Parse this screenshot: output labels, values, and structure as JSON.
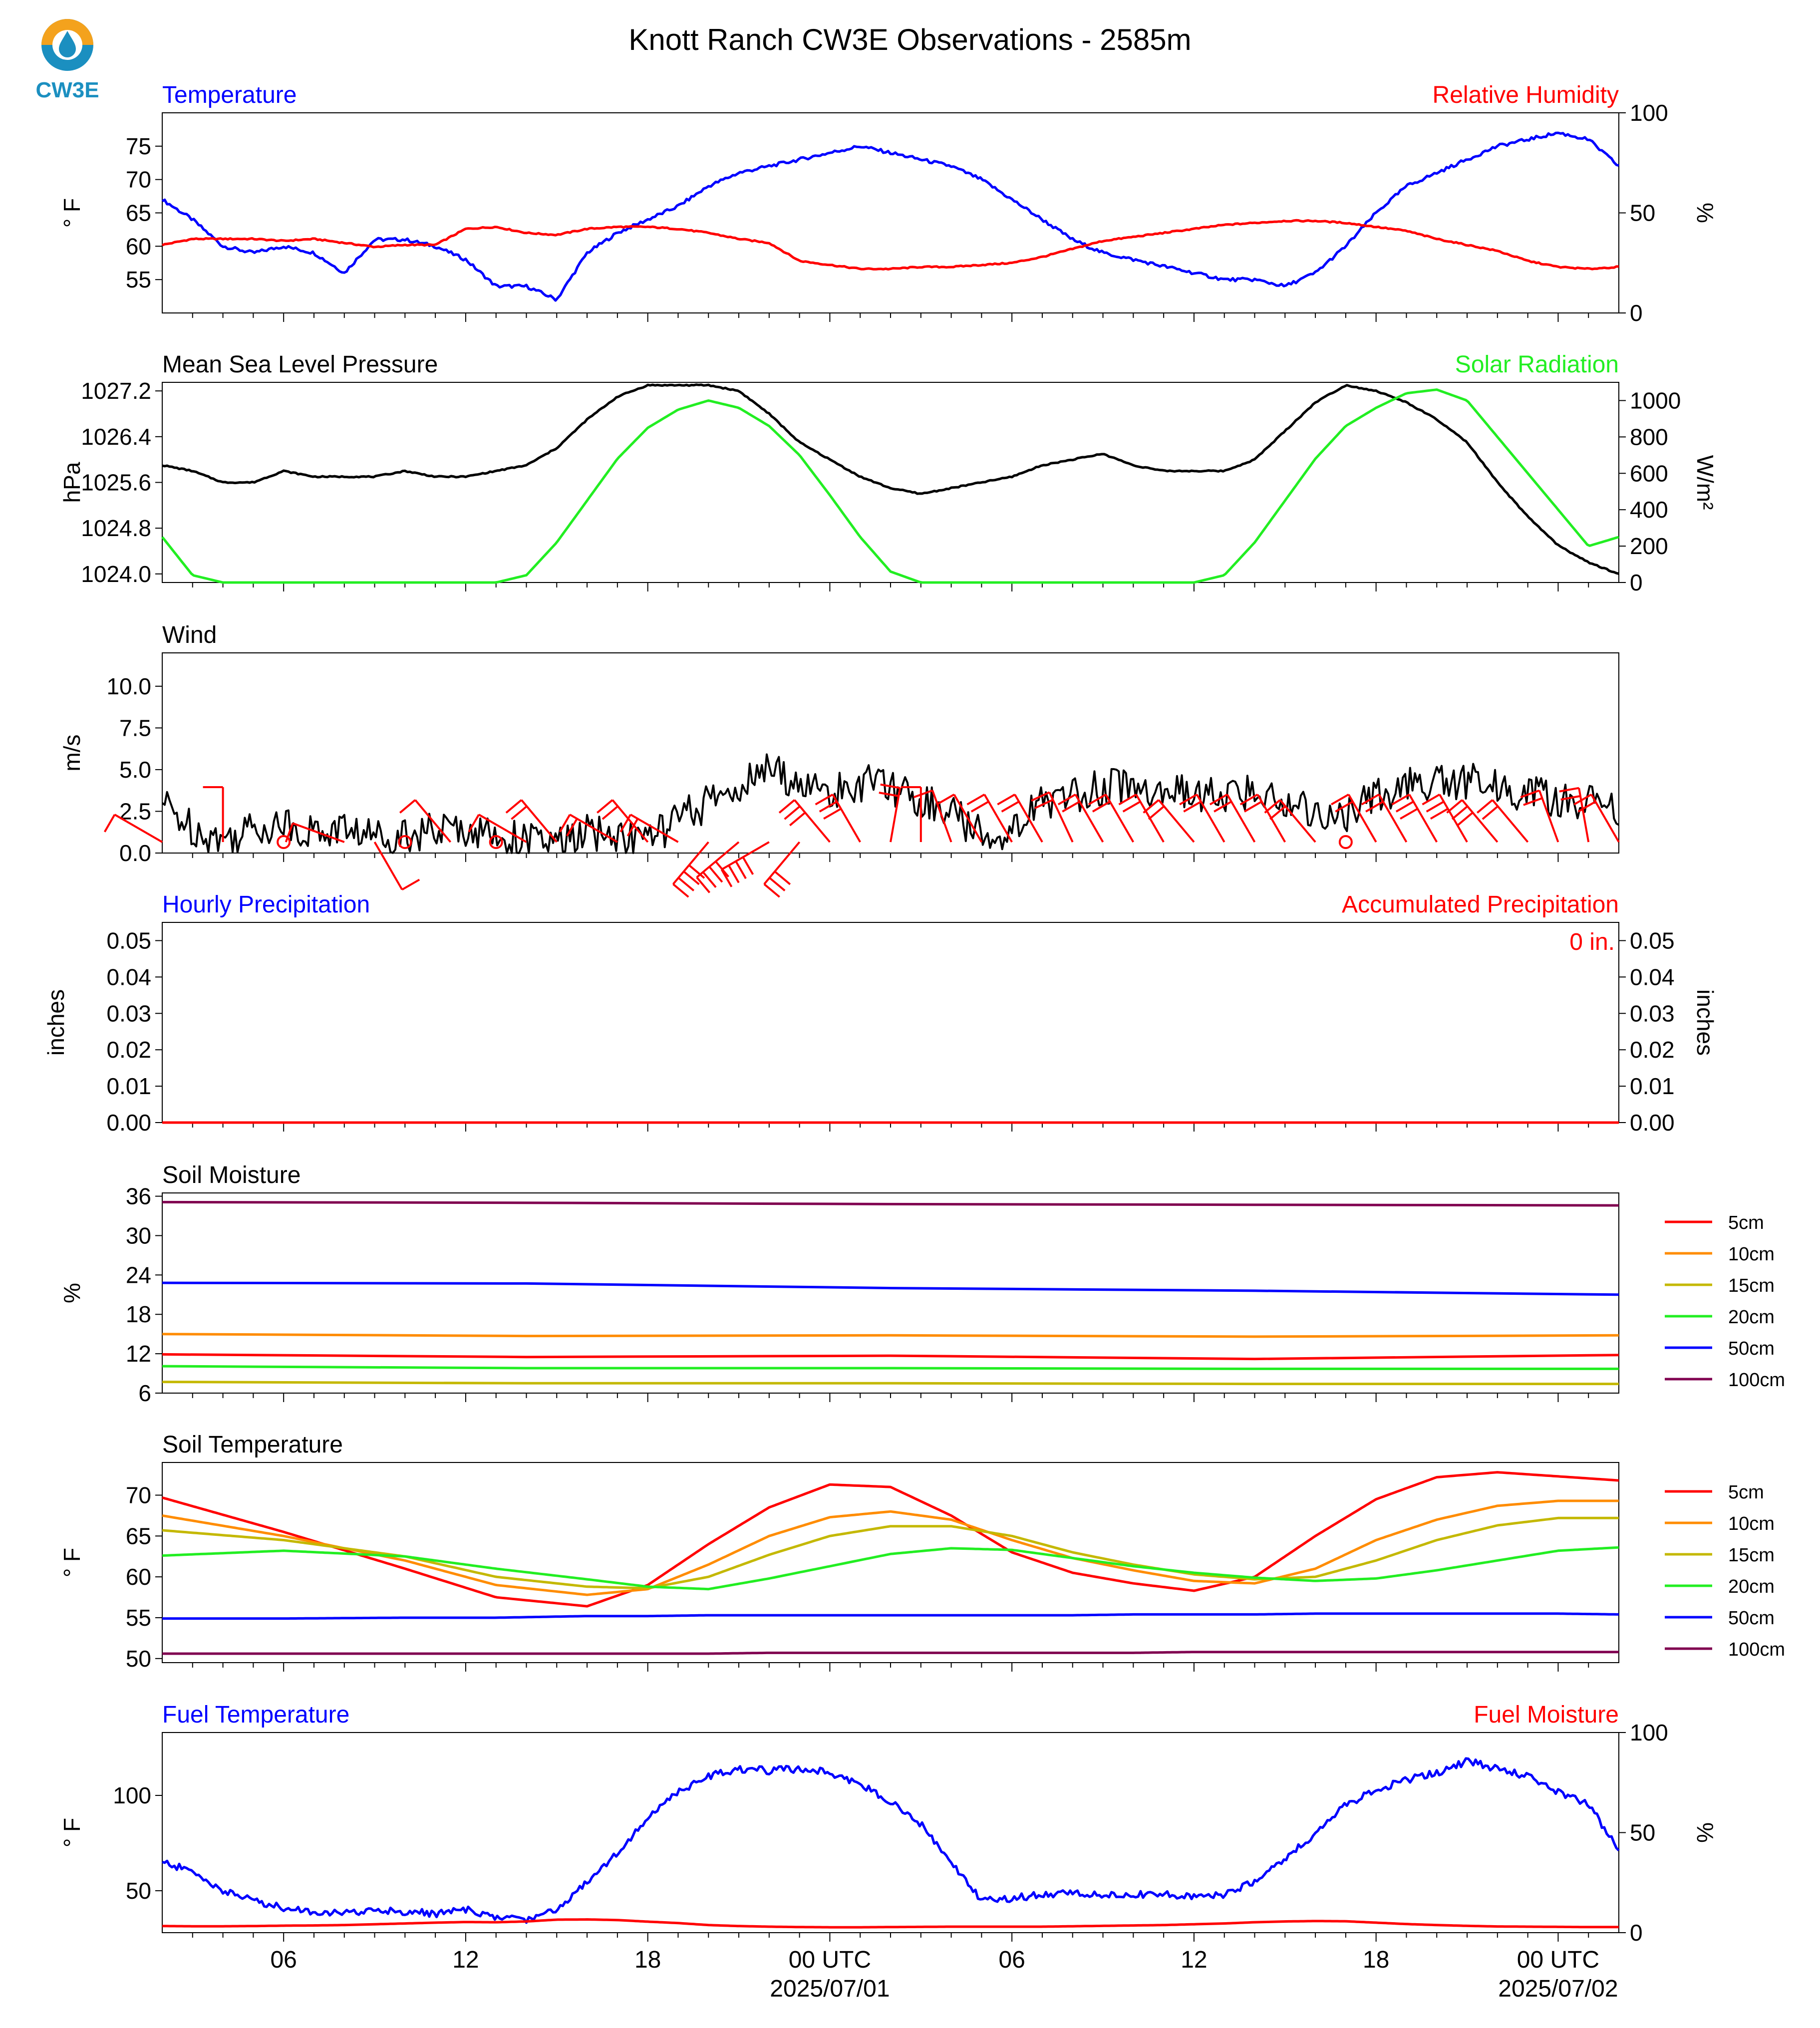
{
  "title": "Knott Ranch CW3E Observations - 2585m",
  "logo": {
    "text": "CW3E"
  },
  "colors": {
    "blue": "#0000ff",
    "red": "#ff0000",
    "green": "#22ee22",
    "black": "#000000",
    "orange": "#ff8c00",
    "olive": "#c4b800",
    "purple": "#800050",
    "logo_blue": "#1b8fc0",
    "logo_orange": "#f4a21d"
  },
  "time_axis": {
    "start": "2025-06-30T02:00Z",
    "end": "2025-07-02T02:00Z",
    "tick_labels": [
      "06",
      "12",
      "18",
      "00 UTC",
      "06",
      "12",
      "18",
      "00 UTC"
    ],
    "tick_hours": [
      4,
      10,
      16,
      22,
      28,
      34,
      40,
      46
    ],
    "date_labels": [
      "2025/07/01",
      "2025/07/02"
    ]
  },
  "chart_data": [
    {
      "type": "line",
      "title_left": "Temperature",
      "title_right": "Relative Humidity",
      "ylabel": "° F",
      "ylabel_right": "%",
      "ylim": [
        50,
        80
      ],
      "yticks": [
        "55",
        "60",
        "65",
        "70",
        "75"
      ],
      "ylim_right": [
        0,
        100
      ],
      "yticks_right": [
        "0",
        "50",
        "100"
      ],
      "x_hours": [
        0,
        1,
        2,
        3,
        4,
        5,
        6,
        7,
        8,
        9,
        10,
        11,
        12,
        13,
        14,
        15,
        16,
        17,
        18,
        19,
        20,
        21,
        22,
        23,
        24,
        25,
        26,
        27,
        28,
        29,
        30,
        31,
        32,
        33,
        34,
        35,
        36,
        37,
        38,
        39,
        40,
        41,
        42,
        43,
        44,
        45,
        46,
        47,
        48
      ],
      "series": [
        {
          "color": "#0000ff",
          "axis": "left",
          "values": [
            67,
            64,
            60,
            59,
            60,
            59,
            56,
            61,
            61,
            60,
            58,
            54,
            54,
            52,
            59,
            62,
            64,
            66,
            69,
            71,
            72,
            73,
            74,
            75,
            74,
            73,
            72,
            70,
            67,
            64,
            61,
            59,
            58,
            57,
            56,
            55,
            55,
            54,
            56,
            60,
            65,
            69,
            71,
            73,
            75,
            76,
            77,
            76,
            72
          ]
        },
        {
          "color": "#ff0000",
          "axis": "right",
          "values": [
            34,
            37,
            37,
            37,
            36,
            37,
            35,
            33,
            34,
            34,
            42,
            43,
            40,
            39,
            42,
            43,
            43,
            42,
            40,
            37,
            35,
            26,
            24,
            22,
            22,
            23,
            23,
            24,
            25,
            28,
            32,
            36,
            38,
            40,
            42,
            44,
            45,
            46,
            46,
            45,
            43,
            41,
            37,
            34,
            31,
            26,
            23,
            22,
            23
          ]
        }
      ]
    },
    {
      "type": "line",
      "title_left": "Mean Sea Level Pressure",
      "title_right": "Solar Radiation",
      "ylabel": "hPa",
      "ylabel_right": "W/m²",
      "ylim": [
        1023.85,
        1027.35
      ],
      "yticks": [
        "1024.0",
        "1024.8",
        "1025.6",
        "1026.4",
        "1027.2"
      ],
      "ylim_right": [
        0,
        1100
      ],
      "yticks_right": [
        "0",
        "200",
        "400",
        "600",
        "800",
        "1000"
      ],
      "x_hours": [
        0,
        1,
        2,
        3,
        4,
        5,
        6,
        7,
        8,
        9,
        10,
        11,
        12,
        13,
        14,
        15,
        16,
        17,
        18,
        19,
        20,
        21,
        22,
        23,
        24,
        25,
        26,
        27,
        28,
        29,
        30,
        31,
        32,
        33,
        34,
        35,
        36,
        37,
        38,
        39,
        40,
        41,
        42,
        43,
        44,
        45,
        46,
        47,
        48
      ],
      "series": [
        {
          "color": "#000000",
          "axis": "left",
          "values": [
            1025.9,
            1025.8,
            1025.6,
            1025.6,
            1025.8,
            1025.7,
            1025.7,
            1025.7,
            1025.8,
            1025.7,
            1025.7,
            1025.8,
            1025.9,
            1026.2,
            1026.7,
            1027.1,
            1027.3,
            1027.3,
            1027.3,
            1027.2,
            1026.8,
            1026.3,
            1026.0,
            1025.7,
            1025.5,
            1025.4,
            1025.5,
            1025.6,
            1025.7,
            1025.9,
            1026.0,
            1026.1,
            1025.9,
            1025.8,
            1025.8,
            1025.8,
            1026.0,
            1026.5,
            1027.0,
            1027.3,
            1027.2,
            1027.0,
            1026.7,
            1026.3,
            1025.6,
            1025.0,
            1024.5,
            1024.2,
            1024.0
          ]
        },
        {
          "color": "#22ee22",
          "axis": "right",
          "values": [
            250,
            40,
            0,
            0,
            0,
            0,
            0,
            0,
            0,
            0,
            0,
            0,
            40,
            220,
            450,
            680,
            850,
            950,
            1000,
            960,
            860,
            700,
            480,
            250,
            60,
            0,
            0,
            0,
            0,
            0,
            0,
            0,
            0,
            0,
            0,
            40,
            220,
            450,
            680,
            860,
            960,
            1040,
            1060,
            1000,
            800,
            600,
            400,
            200,
            250
          ]
        }
      ]
    },
    {
      "type": "line",
      "title_left": "Wind",
      "ylabel": "m/s",
      "ylim": [
        0,
        12
      ],
      "yticks": [
        "0.0",
        "2.5",
        "5.0",
        "7.5",
        "10.0"
      ],
      "x_hours": [
        0,
        1,
        2,
        3,
        4,
        5,
        6,
        7,
        8,
        9,
        10,
        11,
        12,
        13,
        14,
        15,
        16,
        17,
        18,
        19,
        20,
        21,
        22,
        23,
        24,
        25,
        26,
        27,
        28,
        29,
        30,
        31,
        32,
        33,
        34,
        35,
        36,
        37,
        38,
        39,
        40,
        41,
        42,
        43,
        44,
        45,
        46,
        47,
        48
      ],
      "series": [
        {
          "color": "#000000",
          "axis": "left",
          "values": [
            3.0,
            1.5,
            0.8,
            1.5,
            1.8,
            1.2,
            1.5,
            1.0,
            1.2,
            1.3,
            1.5,
            1.0,
            0.8,
            0.5,
            1.2,
            1.0,
            0.8,
            2.0,
            3.0,
            4.0,
            5.0,
            4.2,
            3.5,
            4.2,
            4.0,
            3.2,
            2.5,
            1.0,
            1.5,
            3.0,
            3.5,
            4.0,
            4.0,
            3.6,
            3.5,
            3.4,
            3.6,
            3.2,
            2.5,
            2.0,
            3.5,
            4.0,
            4.2,
            4.3,
            4.0,
            3.5,
            3.2,
            3.0,
            2.5
          ]
        }
      ],
      "barbs_hours": [
        0,
        2,
        4,
        6,
        7,
        8,
        9.5,
        11,
        12,
        13,
        15,
        16,
        17,
        18,
        19,
        20,
        21,
        22,
        23,
        24,
        25,
        26,
        27,
        28,
        29,
        30,
        31,
        32,
        33,
        34,
        35,
        36,
        37,
        38,
        39,
        40,
        41,
        42,
        43,
        44,
        45,
        46,
        47,
        48
      ],
      "barbs_speed": [
        2,
        1,
        0,
        1,
        2,
        0,
        2,
        0,
        2,
        3,
        3,
        3,
        4,
        7,
        8,
        7,
        6,
        5,
        5,
        3,
        2,
        2,
        2,
        3,
        3,
        3,
        3,
        3,
        3,
        3,
        3,
        3,
        3,
        3,
        0,
        3,
        4,
        5,
        5,
        5,
        4,
        4,
        3,
        3
      ],
      "barbs_dir": [
        300,
        0,
        0,
        290,
        150,
        0,
        320,
        0,
        300,
        320,
        300,
        320,
        300,
        220,
        230,
        240,
        220,
        320,
        330,
        10,
        0,
        340,
        330,
        330,
        330,
        335,
        330,
        330,
        330,
        320,
        330,
        330,
        330,
        320,
        0,
        330,
        330,
        330,
        330,
        320,
        320,
        340,
        350,
        330
      ]
    },
    {
      "type": "line",
      "title_left": "Hourly Precipitation",
      "title_right": "Accumulated Precipitation",
      "ylabel": "inches",
      "ylabel_right": "inches",
      "ylim": [
        0,
        0.055
      ],
      "yticks": [
        "0.00",
        "0.01",
        "0.02",
        "0.03",
        "0.04",
        "0.05"
      ],
      "yticks_right": [
        "0.00",
        "0.01",
        "0.02",
        "0.03",
        "0.04",
        "0.05"
      ],
      "annotation": "0 in.",
      "x_hours": [
        0,
        48
      ],
      "series": [
        {
          "color": "#0000ff",
          "axis": "left",
          "values": [
            0,
            0
          ]
        },
        {
          "color": "#ff0000",
          "axis": "right",
          "values": [
            0,
            0
          ]
        }
      ]
    },
    {
      "type": "line",
      "title_left": "Soil Moisture",
      "ylabel": "%",
      "ylim": [
        6,
        36.5
      ],
      "yticks": [
        "6",
        "12",
        "18",
        "24",
        "30",
        "36"
      ],
      "x_hours": [
        0,
        12,
        24,
        36,
        48
      ],
      "series": [
        {
          "name": "5cm",
          "color": "#ff0000",
          "values": [
            11.9,
            11.5,
            11.7,
            11.2,
            11.8
          ]
        },
        {
          "name": "10cm",
          "color": "#ff8c00",
          "values": [
            15.0,
            14.7,
            14.8,
            14.6,
            14.8
          ]
        },
        {
          "name": "15cm",
          "color": "#c4b800",
          "values": [
            7.7,
            7.5,
            7.5,
            7.4,
            7.4
          ]
        },
        {
          "name": "20cm",
          "color": "#22ee22",
          "values": [
            10.1,
            9.8,
            9.8,
            9.7,
            9.7
          ]
        },
        {
          "name": "50cm",
          "color": "#0000ff",
          "values": [
            22.8,
            22.7,
            22.0,
            21.6,
            21.0
          ]
        },
        {
          "name": "100cm",
          "color": "#800050",
          "values": [
            35.1,
            35.0,
            34.8,
            34.7,
            34.6
          ]
        }
      ]
    },
    {
      "type": "line",
      "title_left": "Soil Temperature",
      "ylabel": "° F",
      "ylim": [
        49.5,
        74
      ],
      "yticks": [
        "50",
        "55",
        "60",
        "65",
        "70"
      ],
      "x_hours": [
        0,
        4,
        8,
        11,
        14,
        16,
        18,
        20,
        22,
        24,
        26,
        28,
        30,
        32,
        34,
        36,
        38,
        40,
        42,
        44,
        46,
        48
      ],
      "series": [
        {
          "name": "5cm",
          "color": "#ff0000",
          "values": [
            69.7,
            65.5,
            61.0,
            57.5,
            56.4,
            59.0,
            64.0,
            68.5,
            71.3,
            71.0,
            67.5,
            63.0,
            60.5,
            59.2,
            58.3,
            60.0,
            65.0,
            69.5,
            72.2,
            72.8,
            72.3,
            71.8
          ]
        },
        {
          "name": "10cm",
          "color": "#ff8c00",
          "values": [
            67.5,
            65.0,
            62.0,
            59.0,
            57.8,
            58.5,
            61.5,
            65.0,
            67.3,
            68.0,
            67.0,
            64.5,
            62.3,
            60.8,
            59.5,
            59.2,
            61.0,
            64.5,
            67.0,
            68.7,
            69.3,
            69.3
          ]
        },
        {
          "name": "15cm",
          "color": "#c4b800",
          "values": [
            65.7,
            64.5,
            62.5,
            60.0,
            58.8,
            58.6,
            60.0,
            62.7,
            65.0,
            66.2,
            66.2,
            65.0,
            63.0,
            61.5,
            60.3,
            59.7,
            60.0,
            62.0,
            64.5,
            66.3,
            67.2,
            67.2
          ]
        },
        {
          "name": "20cm",
          "color": "#22ee22",
          "values": [
            62.6,
            63.2,
            62.5,
            61.0,
            59.7,
            58.8,
            58.5,
            59.8,
            61.3,
            62.8,
            63.5,
            63.3,
            62.3,
            61.3,
            60.5,
            59.9,
            59.5,
            59.8,
            60.8,
            62.0,
            63.2,
            63.6
          ]
        },
        {
          "name": "50cm",
          "color": "#0000ff",
          "values": [
            54.9,
            54.9,
            55.0,
            55.0,
            55.2,
            55.2,
            55.3,
            55.3,
            55.3,
            55.3,
            55.3,
            55.3,
            55.3,
            55.4,
            55.4,
            55.4,
            55.5,
            55.5,
            55.5,
            55.5,
            55.5,
            55.4
          ]
        },
        {
          "name": "100cm",
          "color": "#800050",
          "values": [
            50.6,
            50.6,
            50.6,
            50.6,
            50.6,
            50.6,
            50.6,
            50.7,
            50.7,
            50.7,
            50.7,
            50.7,
            50.7,
            50.7,
            50.8,
            50.8,
            50.8,
            50.8,
            50.8,
            50.8,
            50.8,
            50.8
          ]
        }
      ]
    },
    {
      "type": "line",
      "title_left": "Fuel Temperature",
      "title_right": "Fuel Moisture",
      "ylabel": "° F",
      "ylabel_right": "%",
      "ylim": [
        28,
        133
      ],
      "yticks": [
        "50",
        "100"
      ],
      "ylim_right": [
        0,
        100
      ],
      "yticks_right": [
        "0",
        "50",
        "100"
      ],
      "x_hours": [
        0,
        1,
        2,
        3,
        4,
        5,
        6,
        7,
        8,
        9,
        10,
        11,
        12,
        13,
        14,
        15,
        16,
        17,
        18,
        19,
        20,
        21,
        22,
        23,
        24,
        25,
        26,
        27,
        28,
        29,
        30,
        31,
        32,
        33,
        34,
        35,
        36,
        37,
        38,
        39,
        40,
        41,
        42,
        43,
        44,
        45,
        46,
        47,
        48
      ],
      "series": [
        {
          "color": "#0000ff",
          "axis": "left",
          "values": [
            65,
            60,
            50,
            45,
            41,
            39,
            38,
            40,
            39,
            38,
            40,
            36,
            35,
            40,
            55,
            70,
            88,
            102,
            110,
            114,
            113,
            114,
            112,
            106,
            97,
            85,
            65,
            45,
            46,
            48,
            49,
            48,
            48,
            48,
            47,
            48,
            55,
            67,
            80,
            95,
            103,
            108,
            112,
            118,
            114,
            110,
            102,
            95,
            72
          ]
        },
        {
          "color": "#ff0000",
          "axis": "right",
          "values": [
            3.3,
            3.2,
            3.2,
            3.3,
            3.5,
            3.6,
            3.8,
            4.2,
            4.6,
            5.0,
            5.3,
            5.2,
            5.6,
            6.5,
            6.6,
            6.3,
            5.5,
            4.8,
            3.8,
            3.3,
            3.0,
            2.8,
            2.7,
            2.7,
            2.8,
            2.9,
            3.0,
            3.0,
            3.0,
            3.0,
            3.2,
            3.4,
            3.6,
            3.8,
            4.2,
            4.6,
            5.2,
            5.6,
            5.8,
            5.7,
            5.0,
            4.3,
            3.8,
            3.4,
            3.1,
            3.0,
            2.9,
            2.8,
            2.8
          ]
        }
      ]
    }
  ]
}
